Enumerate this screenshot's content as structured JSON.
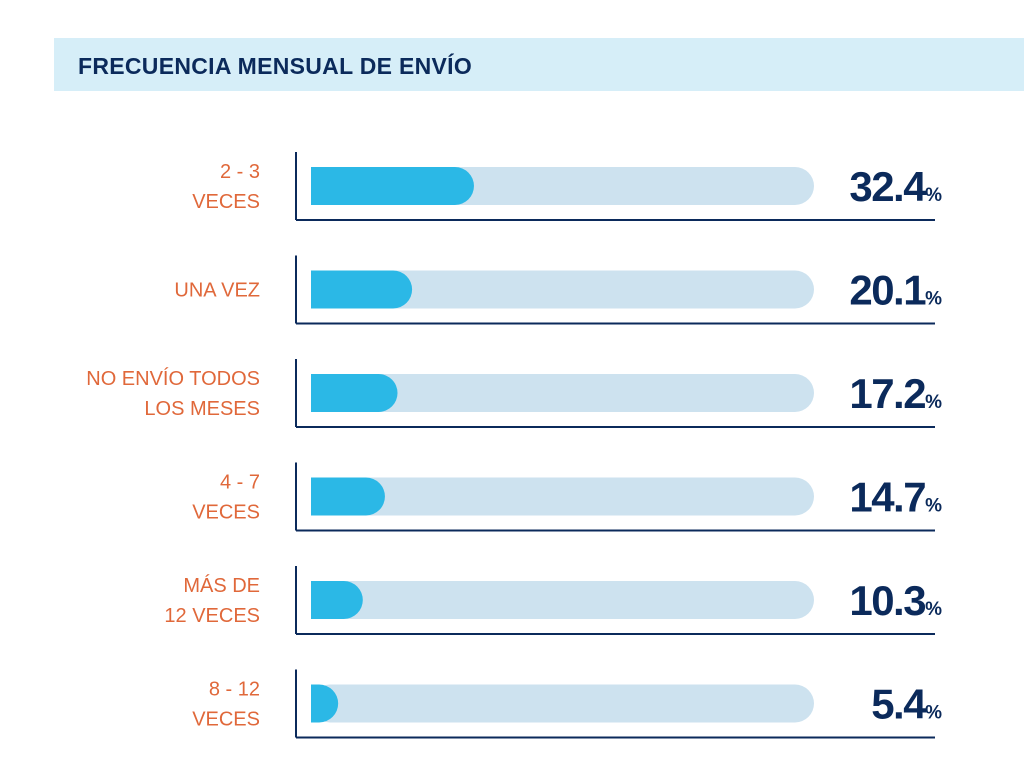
{
  "chart_data": {
    "type": "bar",
    "orientation": "horizontal",
    "title": "FRECUENCIA MENSUAL DE ENVÍO",
    "categories": [
      [
        "2 - 3",
        "VECES"
      ],
      [
        "UNA VEZ"
      ],
      [
        "NO ENVÍO TODOS",
        "LOS MESES"
      ],
      [
        "4 - 7",
        "VECES"
      ],
      [
        "MÁS DE",
        "12 VECES"
      ],
      [
        "8 - 12",
        "VECES"
      ]
    ],
    "values": [
      32.4,
      20.1,
      17.2,
      14.7,
      10.3,
      5.4
    ],
    "value_labels": [
      "32.4",
      "20.1",
      "17.2",
      "14.7",
      "10.3",
      "5.4"
    ],
    "unit": "%",
    "xlim": [
      0,
      100
    ],
    "grid": false,
    "legend": "none",
    "colors": {
      "bar_fill": "#2bb8e6",
      "bar_track": "#cde2ef",
      "category_label": "#e0683a",
      "value_label": "#0b2a5b",
      "axis_line": "#0b2a5b",
      "title_band": "#d6eef8"
    }
  }
}
